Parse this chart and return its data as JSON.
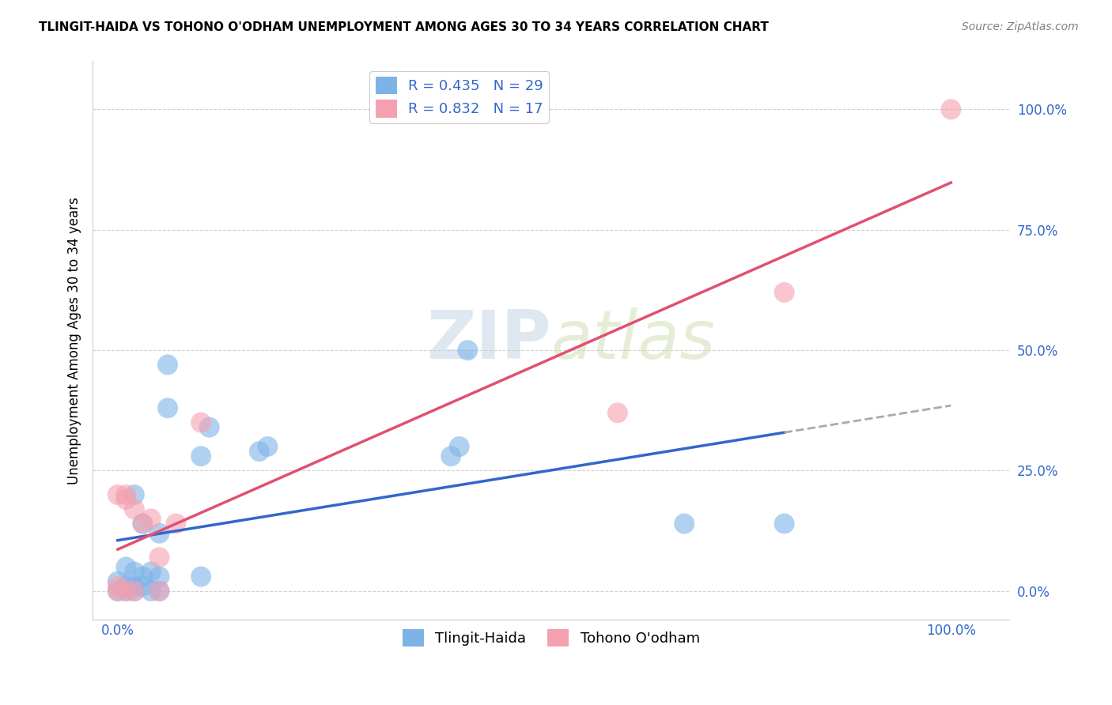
{
  "title": "TLINGIT-HAIDA VS TOHONO O'ODHAM UNEMPLOYMENT AMONG AGES 30 TO 34 YEARS CORRELATION CHART",
  "source": "Source: ZipAtlas.com",
  "ylabel": "Unemployment Among Ages 30 to 34 years",
  "ytick_labels": [
    "0.0%",
    "25.0%",
    "50.0%",
    "75.0%",
    "100.0%"
  ],
  "ytick_vals": [
    0.0,
    0.25,
    0.5,
    0.75,
    1.0
  ],
  "xtick_labels": [
    "0.0%",
    "100.0%"
  ],
  "xtick_vals": [
    0.0,
    1.0
  ],
  "xlim": [
    -0.03,
    1.07
  ],
  "ylim": [
    -0.06,
    1.1
  ],
  "blue_R": 0.435,
  "blue_N": 29,
  "pink_R": 0.832,
  "pink_N": 17,
  "blue_color": "#7EB3E8",
  "pink_color": "#F5A0B0",
  "blue_line_color": "#3366CC",
  "pink_line_color": "#E05070",
  "dashed_line_color": "#AAAAAA",
  "tlingit_x": [
    0.0,
    0.0,
    0.01,
    0.01,
    0.01,
    0.02,
    0.02,
    0.02,
    0.02,
    0.03,
    0.03,
    0.03,
    0.04,
    0.04,
    0.05,
    0.05,
    0.05,
    0.06,
    0.06,
    0.1,
    0.1,
    0.11,
    0.17,
    0.18,
    0.4,
    0.41,
    0.42,
    0.68,
    0.8
  ],
  "tlingit_y": [
    0.0,
    0.02,
    0.0,
    0.01,
    0.05,
    0.0,
    0.01,
    0.04,
    0.2,
    0.01,
    0.03,
    0.14,
    0.0,
    0.04,
    0.0,
    0.03,
    0.12,
    0.38,
    0.47,
    0.03,
    0.28,
    0.34,
    0.29,
    0.3,
    0.28,
    0.3,
    0.5,
    0.14,
    0.14
  ],
  "tohono_x": [
    0.0,
    0.0,
    0.0,
    0.01,
    0.01,
    0.01,
    0.02,
    0.02,
    0.03,
    0.04,
    0.05,
    0.05,
    0.07,
    0.1,
    0.6,
    0.8,
    1.0
  ],
  "tohono_y": [
    0.0,
    0.01,
    0.2,
    0.0,
    0.19,
    0.2,
    0.0,
    0.17,
    0.14,
    0.15,
    0.0,
    0.07,
    0.14,
    0.35,
    0.37,
    0.62,
    1.0
  ],
  "legend_label_blue": "Tlingit-Haida",
  "legend_label_pink": "Tohono O'odham",
  "watermark_zip": "ZIP",
  "watermark_atlas": "atlas",
  "background_color": "#FFFFFF",
  "grid_color": "#CCCCCC"
}
